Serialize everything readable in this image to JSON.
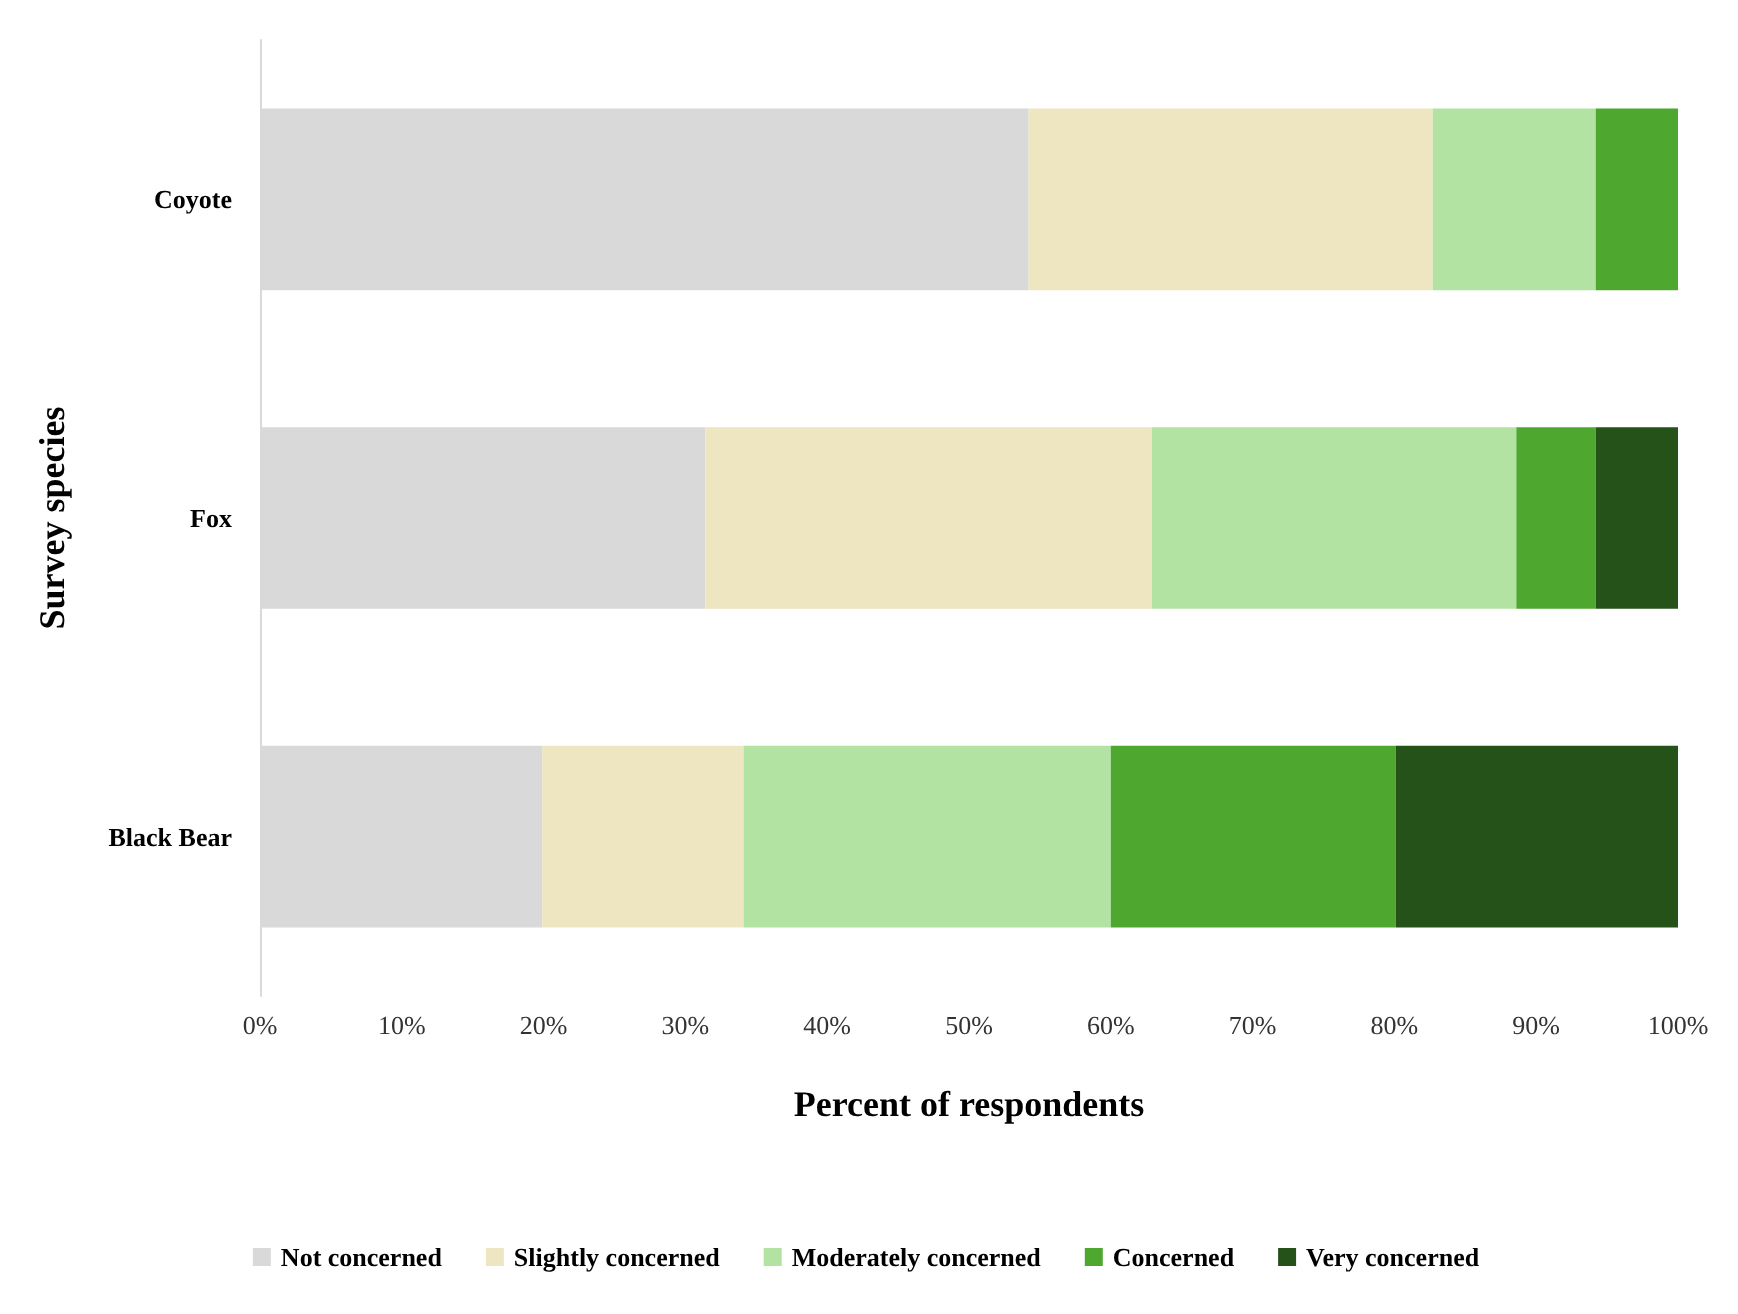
{
  "chart_data": {
    "type": "bar",
    "orientation": "horizontal",
    "stacked": true,
    "xlabel": "Percent of respondents",
    "ylabel": "Survey species",
    "categories": [
      "Coyote",
      "Fox",
      "Black Bear"
    ],
    "series": [
      {
        "name": "Not concerned",
        "color": "#d9d9d9",
        "values": [
          54.2,
          31.4,
          19.9
        ]
      },
      {
        "name": "Slightly concerned",
        "color": "#ede6c0",
        "values": [
          28.5,
          31.5,
          14.2
        ]
      },
      {
        "name": "Moderately concerned",
        "color": "#b3e3a3",
        "values": [
          11.5,
          25.7,
          25.9
        ]
      },
      {
        "name": "Concerned",
        "color": "#4ea72e",
        "values": [
          5.8,
          5.6,
          20.1
        ]
      },
      {
        "name": "Very concerned",
        "color": "#255219",
        "values": [
          0,
          5.8,
          19.9
        ]
      }
    ],
    "xlim": [
      0,
      100
    ],
    "xticks": [
      {
        "value": 0,
        "label": "0%"
      },
      {
        "value": 10,
        "label": "10%"
      },
      {
        "value": 20,
        "label": "20%"
      },
      {
        "value": 30,
        "label": "30%"
      },
      {
        "value": 40,
        "label": "40%"
      },
      {
        "value": 50,
        "label": "50%"
      },
      {
        "value": 60,
        "label": "60%"
      },
      {
        "value": 70,
        "label": "70%"
      },
      {
        "value": 80,
        "label": "80%"
      },
      {
        "value": 90,
        "label": "90%"
      },
      {
        "value": 100,
        "label": "100%"
      }
    ],
    "grid": false,
    "legend": "bottom"
  }
}
